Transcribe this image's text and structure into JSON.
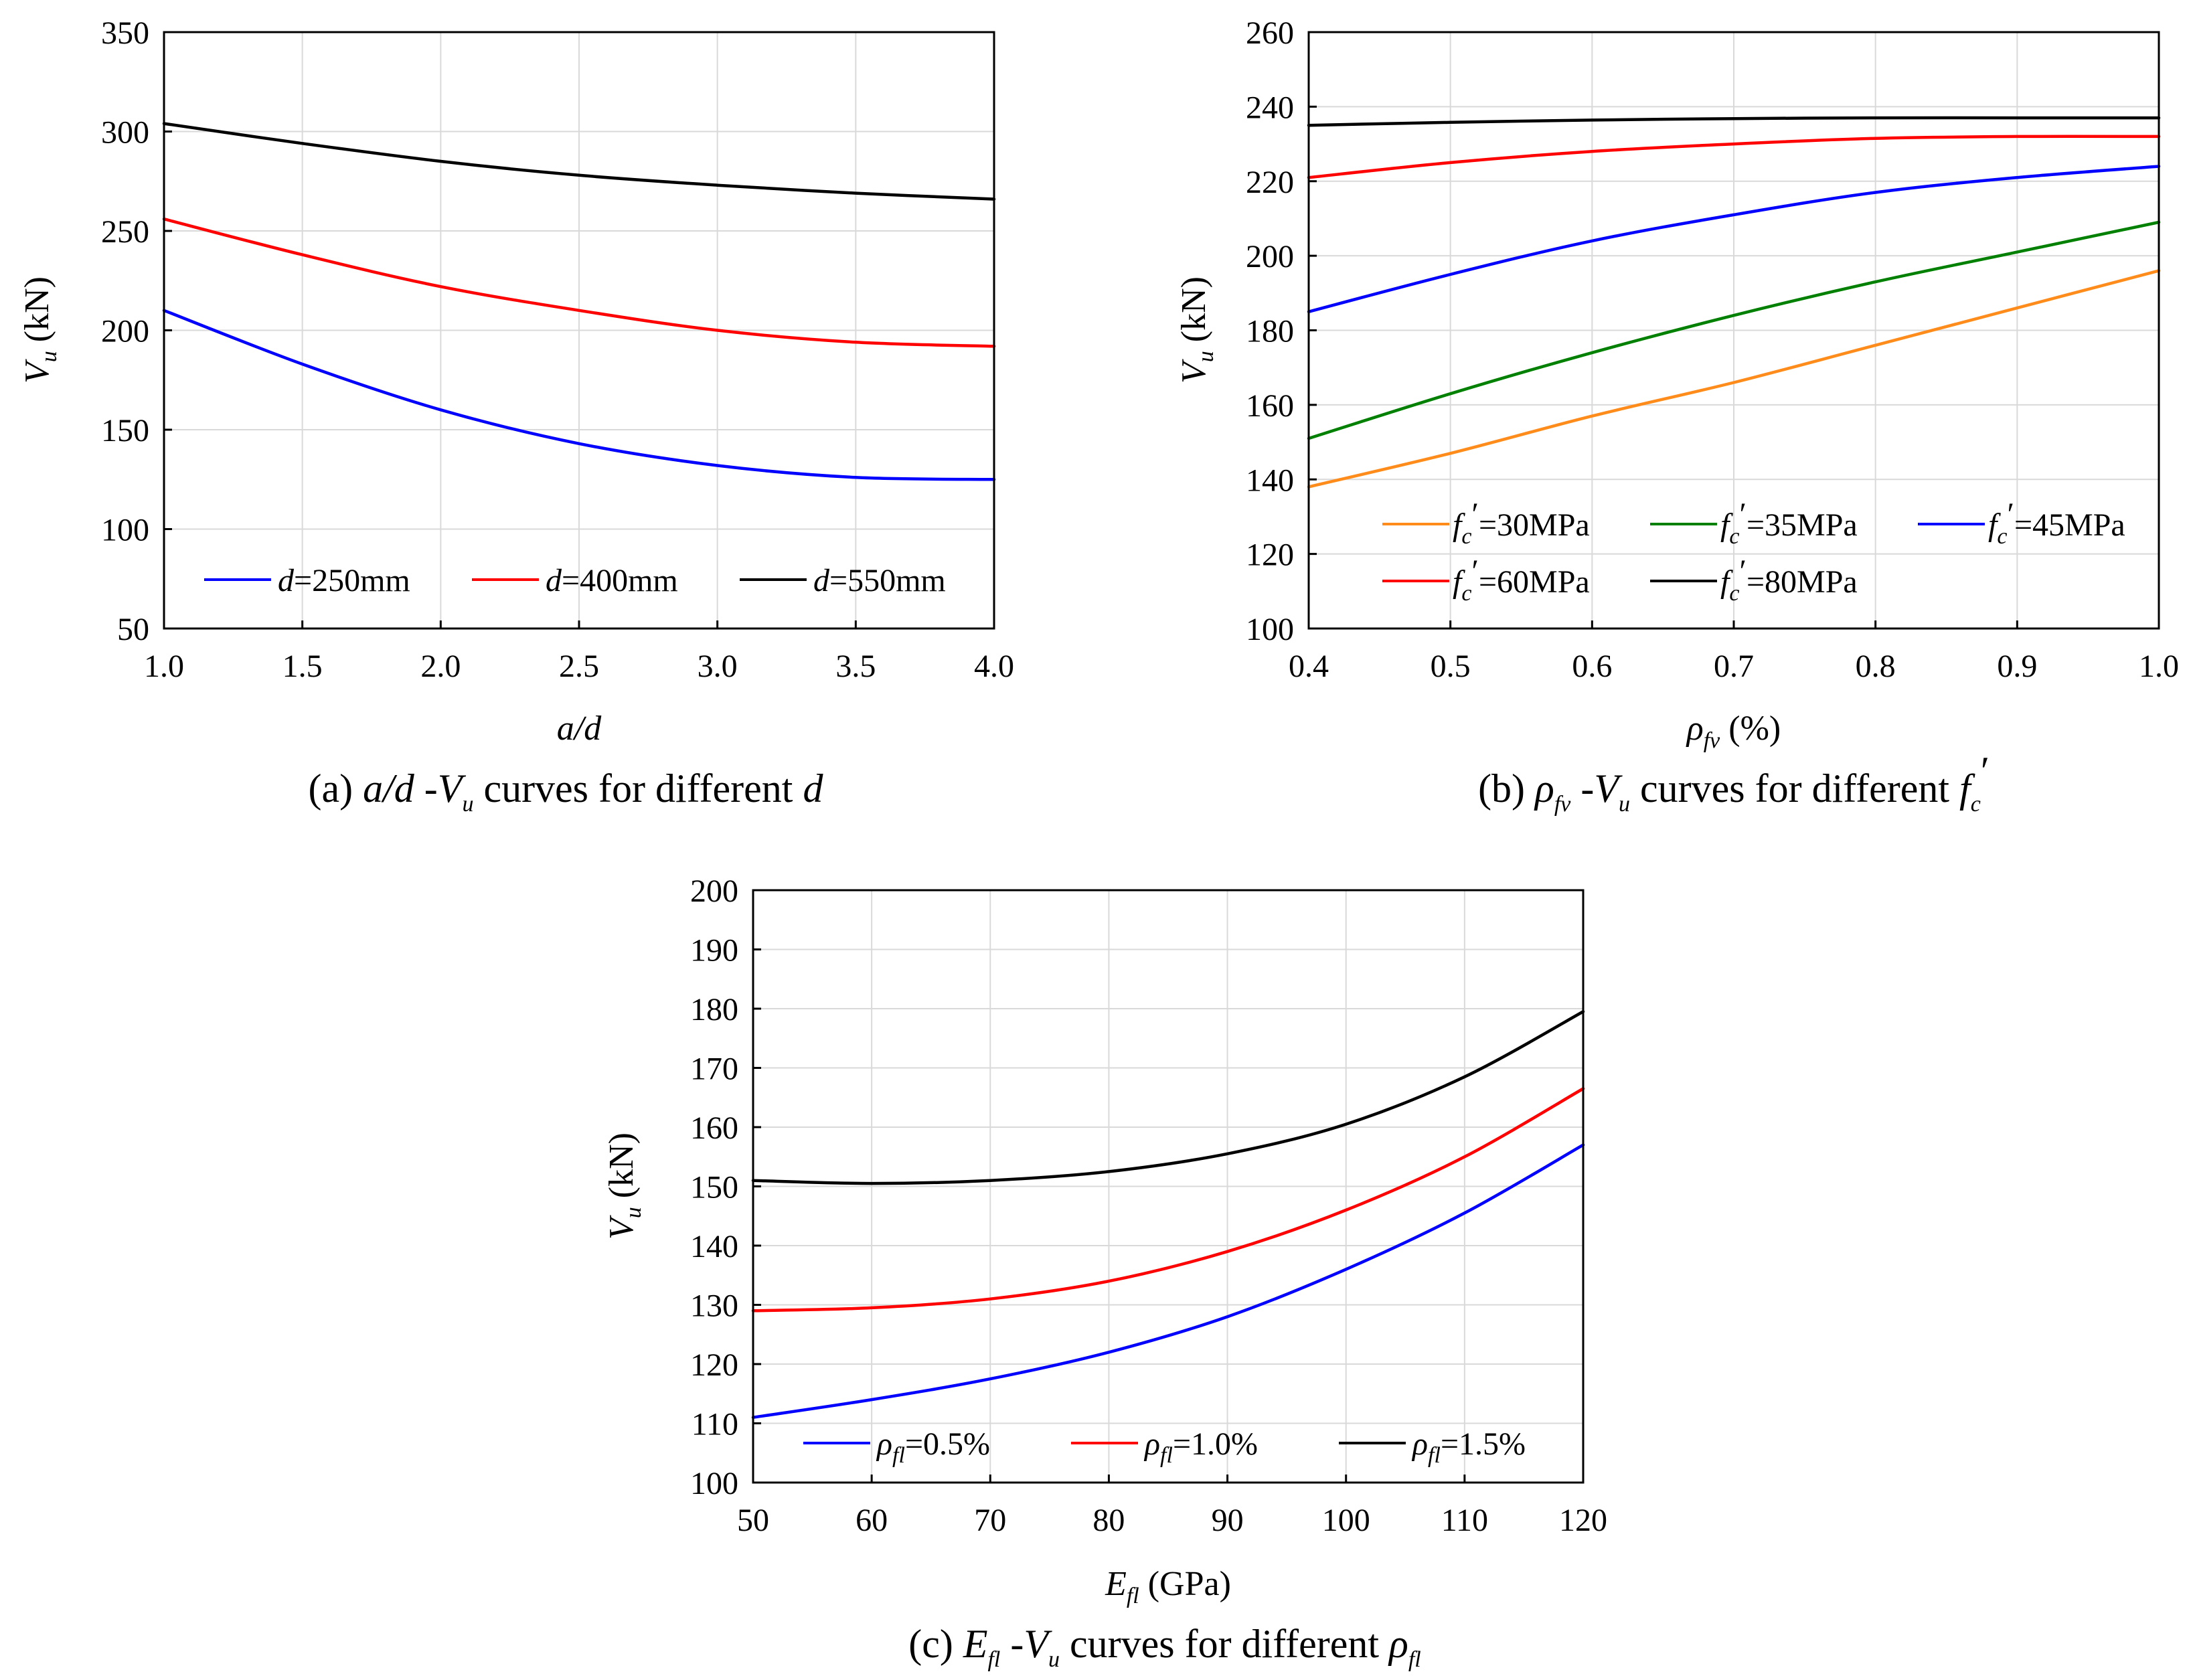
{
  "colors": {
    "blue": "#0000ff",
    "red": "#ff0000",
    "black": "#000000",
    "orange": "#ff8c1a",
    "green": "#008000",
    "grid": "#d9d9d9"
  },
  "chart_data": [
    {
      "id": "a",
      "type": "line",
      "xlabel": "a/d",
      "ylabel": "Vu (kN)",
      "xlim": [
        1.0,
        4.0
      ],
      "ylim": [
        50,
        350
      ],
      "xticks": [
        "1.0",
        "1.5",
        "2.0",
        "2.5",
        "3.0",
        "3.5",
        "4.0"
      ],
      "xtick_values": [
        1.0,
        1.5,
        2.0,
        2.5,
        3.0,
        3.5,
        4.0
      ],
      "yticks": [
        "50",
        "100",
        "150",
        "200",
        "250",
        "300",
        "350"
      ],
      "ytick_values": [
        50,
        100,
        150,
        200,
        250,
        300,
        350
      ],
      "legend_position": "bottom",
      "series": [
        {
          "name": "d=250mm",
          "label_var": "d",
          "label_rest": "=250mm",
          "color": "#0000ff",
          "x": [
            1.0,
            1.5,
            2.0,
            2.5,
            3.0,
            3.5,
            4.0
          ],
          "y": [
            210,
            183,
            160,
            143,
            132,
            126,
            125
          ]
        },
        {
          "name": "d=400mm",
          "label_var": "d",
          "label_rest": "=400mm",
          "color": "#ff0000",
          "x": [
            1.0,
            1.5,
            2.0,
            2.5,
            3.0,
            3.5,
            4.0
          ],
          "y": [
            256,
            238,
            222,
            210,
            200,
            194,
            192
          ]
        },
        {
          "name": "d=550mm",
          "label_var": "d",
          "label_rest": "=550mm",
          "color": "#000000",
          "x": [
            1.0,
            1.5,
            2.0,
            2.5,
            3.0,
            3.5,
            4.0
          ],
          "y": [
            304,
            294,
            285,
            278,
            273,
            269,
            266
          ]
        }
      ]
    },
    {
      "id": "b",
      "type": "line",
      "xlabel": "ρfv (%)",
      "ylabel": "Vu (kN)",
      "xlim": [
        0.4,
        1.0
      ],
      "ylim": [
        100,
        260
      ],
      "xticks": [
        "0.4",
        "0.5",
        "0.6",
        "0.7",
        "0.8",
        "0.9",
        "1.0"
      ],
      "xtick_values": [
        0.4,
        0.5,
        0.6,
        0.7,
        0.8,
        0.9,
        1.0
      ],
      "yticks": [
        "100",
        "120",
        "140",
        "160",
        "180",
        "200",
        "220",
        "240",
        "260"
      ],
      "ytick_values": [
        100,
        120,
        140,
        160,
        180,
        200,
        220,
        240,
        260
      ],
      "legend_position": "bottom",
      "series": [
        {
          "name": "fc'=30MPa",
          "label_var": "f",
          "label_sub": "c",
          "label_rest": "=30MPa",
          "color": "#ff8c1a",
          "x": [
            0.4,
            0.5,
            0.6,
            0.7,
            0.8,
            0.9,
            1.0
          ],
          "y": [
            138,
            147,
            157,
            166,
            176,
            186,
            196
          ]
        },
        {
          "name": "fc'=35MPa",
          "label_var": "f",
          "label_sub": "c",
          "label_rest": "=35MPa",
          "color": "#008000",
          "x": [
            0.4,
            0.5,
            0.6,
            0.7,
            0.8,
            0.9,
            1.0
          ],
          "y": [
            151,
            163,
            174,
            184,
            193,
            201,
            209
          ]
        },
        {
          "name": "fc'=45MPa",
          "label_var": "f",
          "label_sub": "c",
          "label_rest": "=45MPa",
          "color": "#0000ff",
          "x": [
            0.4,
            0.5,
            0.6,
            0.7,
            0.8,
            0.9,
            1.0
          ],
          "y": [
            185,
            195,
            204,
            211,
            217,
            221,
            224
          ]
        },
        {
          "name": "fc'=60MPa",
          "label_var": "f",
          "label_sub": "c",
          "label_rest": "=60MPa",
          "color": "#ff0000",
          "x": [
            0.4,
            0.5,
            0.6,
            0.7,
            0.8,
            0.9,
            1.0
          ],
          "y": [
            221,
            225,
            228,
            230,
            231.5,
            232,
            232
          ]
        },
        {
          "name": "fc'=80MPa",
          "label_var": "f",
          "label_sub": "c",
          "label_rest": "=80MPa",
          "color": "#000000",
          "x": [
            0.4,
            0.5,
            0.6,
            0.7,
            0.8,
            0.9,
            1.0
          ],
          "y": [
            235,
            235.8,
            236.4,
            236.8,
            237,
            237,
            237
          ]
        }
      ]
    },
    {
      "id": "c",
      "type": "line",
      "xlabel": "Efl (GPa)",
      "ylabel": "Vu (kN)",
      "xlim": [
        50,
        120
      ],
      "ylim": [
        100,
        200
      ],
      "xticks": [
        "50",
        "60",
        "70",
        "80",
        "90",
        "100",
        "110",
        "120"
      ],
      "xtick_values": [
        50,
        60,
        70,
        80,
        90,
        100,
        110,
        120
      ],
      "yticks": [
        "100",
        "110",
        "120",
        "130",
        "140",
        "150",
        "160",
        "170",
        "180",
        "190",
        "200"
      ],
      "ytick_values": [
        100,
        110,
        120,
        130,
        140,
        150,
        160,
        170,
        180,
        190,
        200
      ],
      "legend_position": "bottom",
      "series": [
        {
          "name": "ρfl=0.5%",
          "label_var": "ρ",
          "label_sub": "fl",
          "label_rest": "=0.5%",
          "color": "#0000ff",
          "x": [
            50,
            60,
            70,
            80,
            90,
            100,
            110,
            120
          ],
          "y": [
            111,
            114,
            117.5,
            122,
            128,
            136,
            145.5,
            157
          ]
        },
        {
          "name": "ρfl=1.0%",
          "label_var": "ρ",
          "label_sub": "fl",
          "label_rest": "=1.0%",
          "color": "#ff0000",
          "x": [
            50,
            60,
            70,
            80,
            90,
            100,
            110,
            120
          ],
          "y": [
            129,
            129.5,
            131,
            134,
            139,
            146,
            155,
            166.5
          ]
        },
        {
          "name": "ρfl=1.5%",
          "label_var": "ρ",
          "label_sub": "fl",
          "label_rest": "=1.5%",
          "color": "#000000",
          "x": [
            50,
            60,
            70,
            80,
            90,
            100,
            110,
            120
          ],
          "y": [
            151,
            150.5,
            151,
            152.5,
            155.5,
            160.5,
            168.5,
            179.5
          ]
        }
      ]
    }
  ],
  "captions": {
    "a": {
      "prefix": "(a) ",
      "var1": "a/d",
      "mid1": " -",
      "var2": "V",
      "sub2": "u",
      "mid2": " curves for different ",
      "var3": "d"
    },
    "b": {
      "prefix": "(b) ",
      "var1": "ρ",
      "sub1": "fv",
      "mid1": " -",
      "var2": "V",
      "sub2": "u",
      "mid2": " curves for different ",
      "var3": "f",
      "sub3": "c",
      "sup3": "′"
    },
    "c": {
      "prefix": "(c) ",
      "var1": "E",
      "sub1": "fl",
      "mid1": " -",
      "var2": "V",
      "sub2": "u",
      "mid2": " curves for different ",
      "var3": "ρ",
      "sub3": "fl"
    }
  },
  "axis_titles": {
    "a_x": {
      "var": "a/d"
    },
    "b_x": {
      "var": "ρ",
      "sub": "fv",
      "rest": " (%)"
    },
    "c_x": {
      "var": "E",
      "sub": "fl",
      "rest": "  (GPa)"
    },
    "y": {
      "var": "V",
      "sub": "u",
      "rest": " (kN)"
    }
  }
}
